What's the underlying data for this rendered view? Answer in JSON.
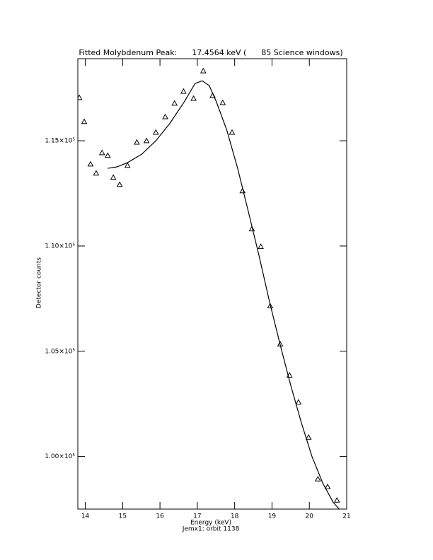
{
  "chart_data": {
    "type": "scatter",
    "title": "Fitted Molybdenum Peak:      17.4564 keV (      85 Science windows)",
    "x_label": "Energy (keV)",
    "subtitle": "Jemx1: orbit 1138",
    "y_label": "Detector counts",
    "xlim": [
      13.8,
      21.0
    ],
    "xticks": [
      14,
      15,
      16,
      17,
      18,
      19,
      20,
      21
    ],
    "ylim": [
      97500,
      118900
    ],
    "yticks": [
      {
        "value": 100000,
        "label": "1.00×10⁵"
      },
      {
        "value": 105000,
        "label": "1.05×10⁵"
      },
      {
        "value": 110000,
        "label": "1.10×10⁵"
      },
      {
        "value": 115000,
        "label": "1.15×10⁵"
      }
    ],
    "series": [
      {
        "style": "marker",
        "marker": "triangle",
        "color": "#000000",
        "x": [
          13.84,
          13.97,
          14.14,
          14.29,
          14.45,
          14.6,
          14.75,
          14.92,
          15.13,
          15.38,
          15.64,
          15.89,
          16.14,
          16.39,
          16.63,
          16.9,
          17.16,
          17.41,
          17.68,
          17.93,
          18.21,
          18.46,
          18.7,
          18.95,
          19.22,
          19.47,
          19.71,
          19.98,
          20.23,
          20.49,
          20.74
        ],
        "values": [
          117050,
          115910,
          113890,
          113460,
          114430,
          114300,
          113260,
          112920,
          113830,
          114930,
          115000,
          115400,
          116140,
          116780,
          117350,
          117010,
          118320,
          117150,
          116810,
          115400,
          112620,
          110810,
          109970,
          107150,
          105340,
          103860,
          102580,
          100910,
          98930,
          98560,
          97920
        ]
      },
      {
        "style": "line",
        "color": "#000000",
        "x": [
          14.6,
          14.85,
          15.13,
          15.51,
          15.89,
          16.27,
          16.65,
          16.94,
          17.13,
          17.32,
          17.51,
          17.79,
          18.08,
          18.36,
          18.65,
          18.93,
          19.22,
          19.5,
          19.79,
          20.07,
          20.36,
          20.64,
          20.8
        ],
        "values": [
          113690,
          113760,
          113960,
          114360,
          115000,
          115840,
          116850,
          117720,
          117850,
          117620,
          116850,
          115500,
          113690,
          111680,
          109560,
          107380,
          105300,
          103390,
          101580,
          100000,
          98730,
          97820,
          97500
        ]
      }
    ]
  }
}
